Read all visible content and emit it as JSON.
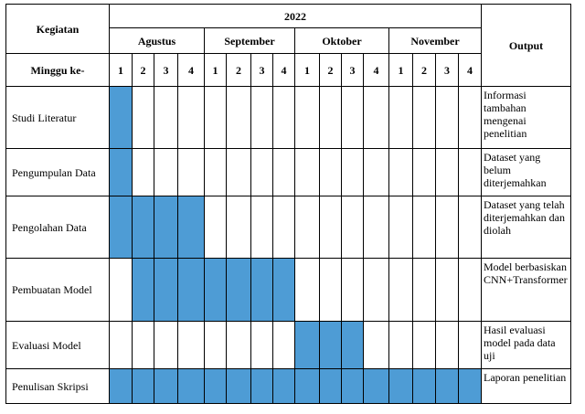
{
  "header": {
    "kegiatan": "Kegiatan",
    "year": "2022",
    "output": "Output",
    "minggu": "Minggu ke-",
    "months": [
      "Agustus",
      "September",
      "Oktober",
      "November"
    ],
    "weeks": [
      "1",
      "2",
      "3",
      "4"
    ]
  },
  "colors": {
    "filled": "#4e9cd5"
  },
  "rows": [
    {
      "activity": "Studi Literatur",
      "output": "Informasi tambahan mengenai penelitian",
      "filled": [
        1,
        0,
        0,
        0,
        0,
        0,
        0,
        0,
        0,
        0,
        0,
        0,
        0,
        0,
        0,
        0
      ]
    },
    {
      "activity": "Pengumpulan Data",
      "output": "Dataset yang belum diterjemahkan",
      "filled": [
        1,
        0,
        0,
        0,
        0,
        0,
        0,
        0,
        0,
        0,
        0,
        0,
        0,
        0,
        0,
        0
      ]
    },
    {
      "activity": "Pengolahan Data",
      "output": "Dataset yang telah diterjemahkan dan diolah",
      "filled": [
        1,
        1,
        1,
        1,
        0,
        0,
        0,
        0,
        0,
        0,
        0,
        0,
        0,
        0,
        0,
        0
      ]
    },
    {
      "activity": "Pembuatan Model",
      "output": "Model berbasiskan CNN+Transformer",
      "filled": [
        0,
        1,
        1,
        1,
        1,
        1,
        1,
        1,
        0,
        0,
        0,
        0,
        0,
        0,
        0,
        0
      ]
    },
    {
      "activity": "Evaluasi Model",
      "output": "Hasil evaluasi model pada data uji",
      "filled": [
        0,
        0,
        0,
        0,
        0,
        0,
        0,
        0,
        1,
        1,
        1,
        0,
        0,
        0,
        0,
        0
      ]
    },
    {
      "activity": "Penulisan Skripsi",
      "output": "Laporan penelitian",
      "filled": [
        1,
        1,
        1,
        1,
        1,
        1,
        1,
        1,
        1,
        1,
        1,
        1,
        1,
        1,
        1,
        1
      ]
    }
  ]
}
